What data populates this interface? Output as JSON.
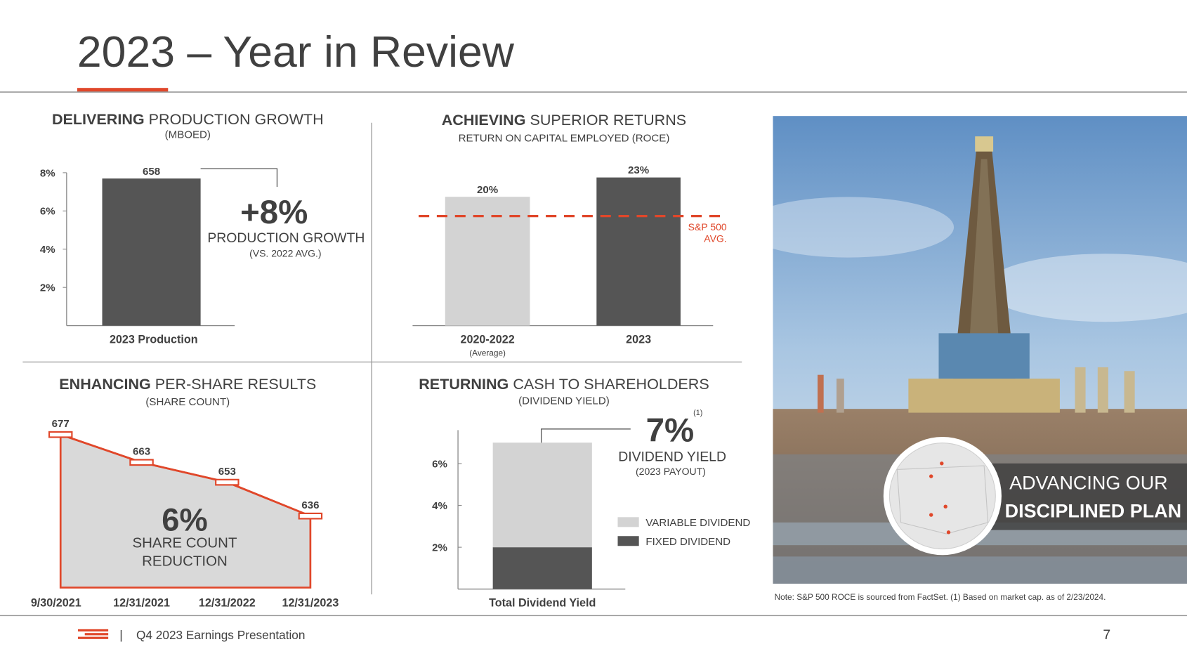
{
  "header": {
    "title": "2023 – Year in Review"
  },
  "chart_data": [
    {
      "type": "bar",
      "title_bold": "DELIVERING",
      "title": "PRODUCTION GROWTH",
      "subtitle": "(MBOED)",
      "categories": [
        "2023 Production"
      ],
      "values": [
        658
      ],
      "color": "#555555",
      "ylim": [
        0,
        684
      ],
      "yticks": [
        {
          "value": 171,
          "label": "2%"
        },
        {
          "value": 342,
          "label": "4%"
        },
        {
          "value": 513,
          "label": "6%"
        },
        {
          "value": 684,
          "label": "8%"
        }
      ],
      "annotation": {
        "value": "+8%",
        "label": "PRODUCTION GROWTH",
        "note": "(VS. 2022 AVG.)"
      }
    },
    {
      "type": "bar",
      "title_bold": "ACHIEVING",
      "title": "SUPERIOR RETURNS",
      "subtitle": "RETURN ON CAPITAL EMPLOYED (ROCE)",
      "categories": [
        "2020-2022",
        "2023"
      ],
      "category_sublabels": [
        "(Average)",
        null
      ],
      "values": [
        20,
        23
      ],
      "value_labels": [
        "20%",
        "23%"
      ],
      "colors": [
        "#d3d3d3",
        "#555555"
      ],
      "ylim": [
        0,
        23.5
      ],
      "reference": {
        "name": [
          "S&P 500",
          "AVG."
        ],
        "value": 17,
        "color": "#e0472a"
      }
    },
    {
      "type": "area",
      "title_bold": "ENHANCING",
      "title": "PER-SHARE RESULTS",
      "subtitle": "(SHARE COUNT)",
      "categories": [
        "9/30/2021",
        "12/31/2021",
        "12/31/2022",
        "12/31/2023"
      ],
      "values": [
        677,
        663,
        653,
        636
      ],
      "color": "#e0472a",
      "fill": "#d9d9d9",
      "ylim": [
        600,
        680
      ],
      "annotation": {
        "value": "6%",
        "label": [
          "SHARE COUNT",
          "REDUCTION"
        ]
      }
    },
    {
      "type": "stacked_bar",
      "title_bold": "RETURNING",
      "title": "CASH TO SHAREHOLDERS",
      "subtitle": "(DIVIDEND YIELD)",
      "categories": [
        "Total Dividend Yield"
      ],
      "series": [
        {
          "name": "FIXED DIVIDEND",
          "color": "#555555",
          "values": [
            2
          ]
        },
        {
          "name": "VARIABLE DIVIDEND",
          "color": "#d3d3d3",
          "values": [
            5
          ]
        }
      ],
      "ylim": [
        0,
        7.6
      ],
      "yticks": [
        {
          "value": 2,
          "label": "2%"
        },
        {
          "value": 4,
          "label": "4%"
        },
        {
          "value": 6,
          "label": "6%"
        }
      ],
      "annotation": {
        "value": "7%",
        "footnote": "(1)",
        "label": "DIVIDEND YIELD",
        "note": "(2023 PAYOUT)"
      }
    }
  ],
  "photo": {
    "banner": [
      "ADVANCING OUR",
      "DISCIPLINED PLAN"
    ]
  },
  "note": "Note: S&P 500 ROCE is sourced from FactSet. (1) Based on market cap. as of 2/23/2024.",
  "footer": {
    "presentation": "Q4 2023 Earnings Presentation",
    "page": 7
  }
}
